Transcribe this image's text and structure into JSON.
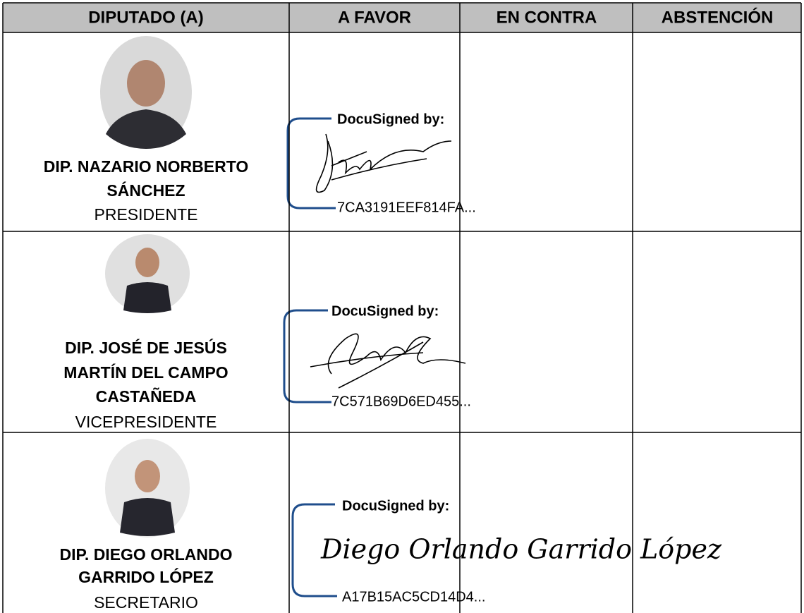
{
  "table": {
    "columns": [
      "DIPUTADO (A)",
      "A FAVOR",
      "EN CONTRA",
      "ABSTENCIÓN"
    ],
    "rows": [
      {
        "name": [
          "DIP. NAZARIO NORBERTO",
          "SÁNCHEZ"
        ],
        "role": "PRESIDENTE",
        "signature": {
          "label": "DocuSigned by:",
          "id": "7CA3191EEF814FA..."
        }
      },
      {
        "name": [
          "DIP. JOSÉ DE JESÚS",
          "MARTÍN DEL CAMPO",
          "CASTAÑEDA"
        ],
        "role": "VICEPRESIDENTE",
        "signature": {
          "label": "DocuSigned by:",
          "id": "7C571B69D6ED455..."
        }
      },
      {
        "name": [
          "DIP. DIEGO ORLANDO",
          "GARRIDO LÓPEZ"
        ],
        "role": "SECRETARIO",
        "signature": {
          "label": "DocuSigned by:",
          "text": "Diego Orlando Garrido López",
          "id": "A17B15AC5CD14D4..."
        }
      }
    ]
  }
}
